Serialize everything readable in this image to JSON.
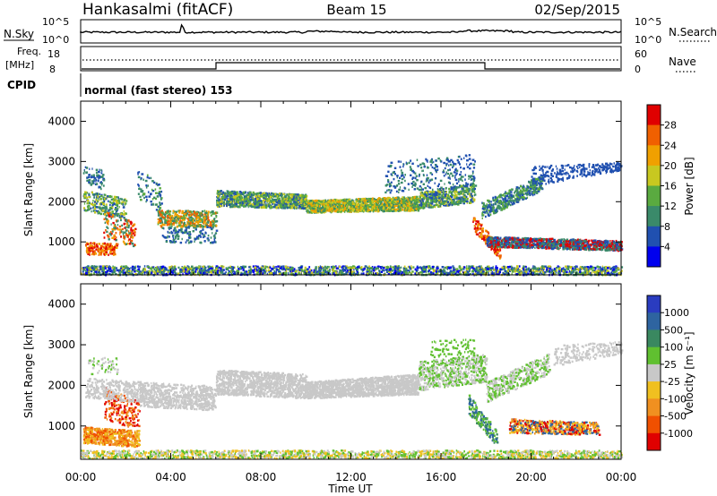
{
  "header": {
    "station": "Hankasalmi (fitACF)",
    "beam": "Beam 15",
    "date": "02/Sep/2015"
  },
  "noise_panel": {
    "left_label": "N.Sky",
    "right_label": "N.Search",
    "left_ticks": [
      "10^5",
      "10^0"
    ],
    "right_ticks": [
      "10^5",
      "10^0"
    ]
  },
  "freq_panel": {
    "left_label_1": "Freq.",
    "left_label_2": "[MHz]",
    "right_label": "Nave",
    "left_ticks": [
      "18",
      "8"
    ],
    "right_ticks": [
      "60",
      "0"
    ]
  },
  "cpid": {
    "label": "CPID",
    "text": "normal (fast stereo) 153"
  },
  "chart_data": [
    {
      "type": "heatmap",
      "name": "power",
      "ylabel": "Slant Range [km]",
      "xlabel": "Time UT",
      "x_ticks": [
        "00:00",
        "04:00",
        "08:00",
        "12:00",
        "16:00",
        "20:00",
        "00:00"
      ],
      "x_range_hours": [
        0,
        24
      ],
      "ylim": [
        180,
        4500
      ],
      "y_ticks": [
        1000,
        2000,
        3000,
        4000
      ],
      "colorbar": {
        "label": "Power [dB]",
        "ticks": [
          "4",
          "8",
          "12",
          "16",
          "20",
          "24",
          "28"
        ],
        "colors": [
          "#0000ee",
          "#2050b0",
          "#3a8a6a",
          "#5aaa40",
          "#c8c820",
          "#f0a000",
          "#f06000",
          "#e00000"
        ]
      }
    },
    {
      "type": "heatmap",
      "name": "velocity",
      "ylabel": "Slant Range [km]",
      "xlabel": "Time UT",
      "x_ticks": [
        "00:00",
        "04:00",
        "08:00",
        "12:00",
        "16:00",
        "20:00",
        "00:00"
      ],
      "x_range_hours": [
        0,
        24
      ],
      "ylim": [
        180,
        4500
      ],
      "y_ticks": [
        1000,
        2000,
        3000,
        4000
      ],
      "colorbar": {
        "label": "Velocity [m s⁻¹]",
        "ticks": [
          "1000",
          "500",
          "100",
          "25",
          "-25",
          "-100",
          "-500",
          "-1000"
        ],
        "colors": [
          "#2a3cc0",
          "#2e64a0",
          "#3a8860",
          "#60c030",
          "#c8c8c8",
          "#f0c020",
          "#f09020",
          "#f05000",
          "#e00000"
        ]
      }
    }
  ]
}
